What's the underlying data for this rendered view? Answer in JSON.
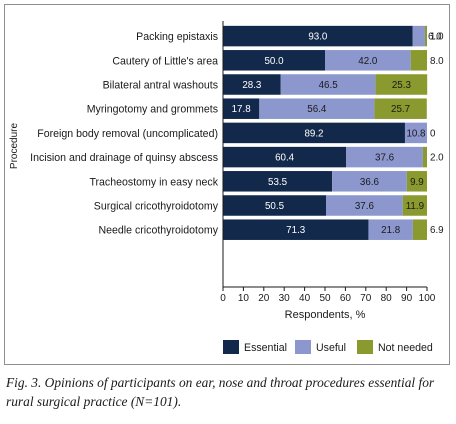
{
  "chart_data": {
    "type": "bar",
    "stacked": true,
    "orientation": "horizontal",
    "categories": [
      "Packing epistaxis",
      "Cautery of Little's area",
      "Bilateral antral washouts",
      "Myringotomy and grommets",
      "Foreign body removal (uncomplicated)",
      "Incision and drainage of quinsy abscess",
      "Tracheostomy in easy neck",
      "Surgical cricothyroidotomy",
      "Needle cricothyroidotomy"
    ],
    "series": [
      {
        "name": "Essential",
        "color": "#13294b",
        "values": [
          93.0,
          50.0,
          28.3,
          17.8,
          89.2,
          60.4,
          53.5,
          50.5,
          71.3
        ],
        "labels": [
          "93.0",
          "50.0",
          "28.3",
          "17.8",
          "89.2",
          "60.4",
          "53.5",
          "50.5",
          "71.3"
        ]
      },
      {
        "name": "Useful",
        "color": "#8b97cd",
        "values": [
          6.0,
          42.0,
          46.5,
          56.4,
          10.8,
          37.6,
          36.6,
          37.6,
          21.8
        ],
        "labels": [
          "6.0",
          "42.0",
          "46.5",
          "56.4",
          "10.8",
          "37.6",
          "36.6",
          "37.6",
          "21.8"
        ]
      },
      {
        "name": "Not needed",
        "color": "#8b9a2e",
        "values": [
          1.0,
          8.0,
          25.3,
          25.7,
          0,
          2.0,
          9.9,
          11.9,
          6.9
        ],
        "labels": [
          "1.0",
          "8.0",
          "25.3",
          "25.7",
          "0",
          "2.0",
          "9.9",
          "11.9",
          "6.9"
        ]
      }
    ],
    "xlabel": "Respondents, %",
    "ylabel": "Procedure",
    "xlim": [
      0,
      100
    ],
    "xticks": [
      "0",
      "10",
      "20",
      "30",
      "40",
      "50",
      "60",
      "70",
      "80",
      "90",
      "100"
    ],
    "grid": false,
    "legend": "bottom"
  },
  "caption": "Fig. 3. Opinions of participants on ear, nose and throat procedures essential for rural surgical practice (N=101)."
}
